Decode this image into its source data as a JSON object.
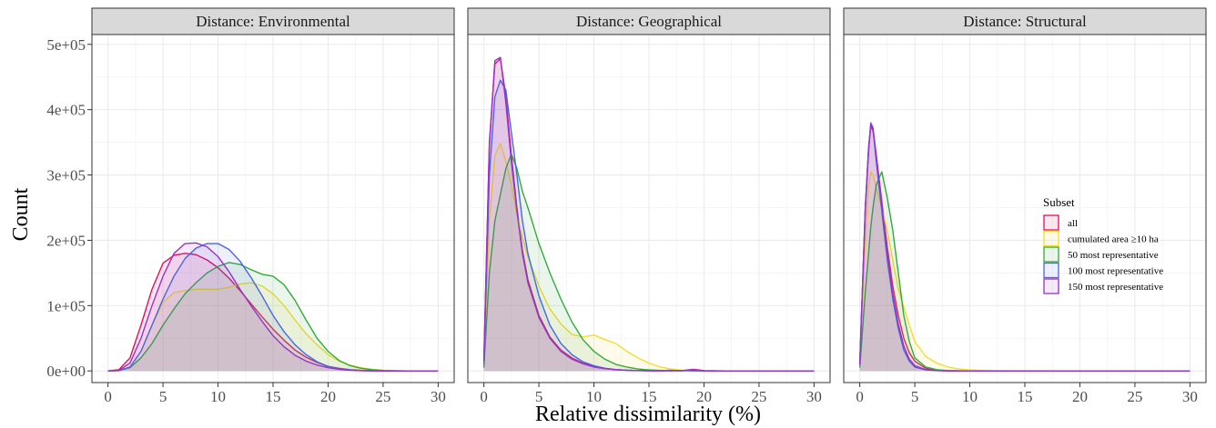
{
  "chart_data": {
    "type": "area",
    "xlabel": "Relative dissimilarity (%)",
    "ylabel": "Count",
    "xlim": [
      0,
      30
    ],
    "ylim": [
      0,
      500000
    ],
    "x_ticks": [
      0,
      5,
      10,
      15,
      20,
      25,
      30
    ],
    "y_ticks": [
      0,
      100000,
      200000,
      300000,
      400000,
      500000
    ],
    "y_tick_labels": [
      "0e+00",
      "1e+05",
      "2e+05",
      "3e+05",
      "4e+05",
      "5e+05"
    ],
    "grid": true,
    "legend": {
      "title": "Subset",
      "placement": "top-right of third panel",
      "entries": [
        "all",
        "cumulated area ≥10 ha",
        "50 most representative",
        "100 most representative",
        "150 most representative"
      ]
    },
    "series_colors": {
      "all": "#e0125e",
      "cumulated area ≥10 ha": "#f2dc32",
      "50 most representative": "#33aa3b",
      "100 most representative": "#4a66e6",
      "150 most representative": "#9932c8"
    },
    "panels": [
      {
        "strip": "Distance: Environmental",
        "x": [
          0,
          1,
          2,
          3,
          4,
          5,
          6,
          7,
          8,
          9,
          10,
          11,
          12,
          13,
          14,
          15,
          16,
          17,
          18,
          19,
          20,
          21,
          22,
          23,
          24,
          25,
          26,
          27,
          28,
          30
        ],
        "series": [
          {
            "name": "all",
            "values": [
              0,
              2000,
              20000,
              70000,
              125000,
              165000,
              177000,
              180000,
              178000,
              170000,
              158000,
              142000,
              123000,
              103000,
              83000,
              64000,
              47000,
              32000,
              21000,
              13000,
              7000,
              4000,
              2000,
              1000,
              500,
              200,
              0,
              0,
              0,
              0
            ]
          },
          {
            "name": "cumulated area ≥10 ha",
            "values": [
              0,
              500,
              6000,
              30000,
              70000,
              105000,
              120000,
              123000,
              125000,
              125000,
              125000,
              128000,
              133000,
              135000,
              130000,
              118000,
              100000,
              78000,
              57000,
              40000,
              25000,
              15000,
              9000,
              5000,
              2500,
              1000,
              500,
              200,
              0,
              0
            ]
          },
          {
            "name": "50 most representative",
            "values": [
              0,
              500,
              5000,
              20000,
              42000,
              70000,
              95000,
              118000,
              135000,
              150000,
              160000,
              166000,
              163000,
              155000,
              148000,
              145000,
              132000,
              108000,
              78000,
              50000,
              30000,
              16000,
              8000,
              4000,
              2000,
              700,
              300,
              0,
              0,
              0
            ]
          },
          {
            "name": "100 most representative",
            "values": [
              0,
              500,
              6000,
              30000,
              70000,
              110000,
              145000,
              172000,
              188000,
              195000,
              195000,
              186000,
              168000,
              143000,
              115000,
              85000,
              60000,
              40000,
              25000,
              14000,
              7000,
              3500,
              1500,
              600,
              200,
              0,
              0,
              0,
              0,
              0
            ]
          },
          {
            "name": "150 most representative",
            "values": [
              0,
              1000,
              12000,
              50000,
              100000,
              145000,
              180000,
              195000,
              196000,
              190000,
              175000,
              152000,
              125000,
              100000,
              76000,
              54000,
              37000,
              24000,
              15000,
              9000,
              5000,
              2500,
              1000,
              400,
              0,
              0,
              0,
              0,
              0,
              0
            ]
          }
        ]
      },
      {
        "strip": "Distance: Geographical",
        "x": [
          0,
          0.5,
          1,
          1.5,
          2,
          2.5,
          3,
          3.5,
          4,
          5,
          6,
          7,
          8,
          9,
          10,
          11,
          12,
          13,
          14,
          15,
          16,
          17,
          18,
          19,
          20,
          22,
          25,
          30
        ],
        "series": [
          {
            "name": "all",
            "values": [
              15000,
              350000,
              470000,
              478000,
              420000,
              330000,
              250000,
              185000,
              140000,
              85000,
              52000,
              32000,
              20000,
              12000,
              7000,
              4000,
              2000,
              1000,
              500,
              500,
              300,
              1000,
              500,
              2500,
              500,
              0,
              0,
              0
            ]
          },
          {
            "name": "cumulated area ≥10 ha",
            "values": [
              10000,
              230000,
              330000,
              348000,
              320000,
              285000,
              240000,
              205000,
              175000,
              130000,
              95000,
              72000,
              56000,
              52000,
              55000,
              48000,
              42000,
              30000,
              20000,
              12000,
              6000,
              3000,
              1000,
              500,
              0,
              0,
              0,
              0
            ]
          },
          {
            "name": "50 most representative",
            "values": [
              5000,
              150000,
              230000,
              270000,
              310000,
              332000,
              310000,
              275000,
              250000,
              195000,
              150000,
              110000,
              75000,
              48000,
              30000,
              18000,
              10000,
              6000,
              3000,
              1500,
              800,
              400,
              200,
              1000,
              0,
              0,
              0,
              0
            ]
          },
          {
            "name": "100 most representative",
            "values": [
              10000,
              300000,
              420000,
              445000,
              430000,
              365000,
              300000,
              230000,
              180000,
              115000,
              70000,
              42000,
              25000,
              14000,
              8000,
              4000,
              2000,
              1000,
              500,
              300,
              200,
              100,
              500,
              0,
              0,
              0,
              0,
              0
            ]
          },
          {
            "name": "150 most representative",
            "values": [
              15000,
              345000,
              475000,
              480000,
              410000,
              320000,
              245000,
              180000,
              135000,
              82000,
              50000,
              30000,
              18000,
              11000,
              6000,
              3500,
              2000,
              1000,
              500,
              300,
              200,
              800,
              300,
              2000,
              0,
              0,
              0,
              0
            ]
          }
        ]
      },
      {
        "strip": "Distance: Structural",
        "x": [
          0,
          0.5,
          0.8,
          1,
          1.2,
          1.5,
          2,
          2.5,
          3,
          3.5,
          4,
          4.5,
          5,
          6,
          7,
          8,
          9,
          10,
          12,
          15,
          20,
          30
        ],
        "series": [
          {
            "name": "all",
            "values": [
              10000,
              250000,
              340000,
              375000,
              368000,
              330000,
              260000,
              190000,
              130000,
              85000,
              50000,
              28000,
              15000,
              4000,
              1000,
              300,
              100,
              0,
              0,
              0,
              0,
              0
            ]
          },
          {
            "name": "cumulated area ≥10 ha",
            "values": [
              8000,
              200000,
              280000,
              305000,
              300000,
              280000,
              250000,
              215000,
              170000,
              125000,
              98000,
              70000,
              45000,
              22000,
              12000,
              6000,
              3000,
              1500,
              500,
              200,
              0,
              0
            ]
          },
          {
            "name": "50 most representative",
            "values": [
              5000,
              120000,
              180000,
              220000,
              250000,
              285000,
              305000,
              265000,
              215000,
              150000,
              85000,
              45000,
              20000,
              6000,
              2000,
              500,
              200,
              0,
              0,
              0,
              0,
              0
            ]
          },
          {
            "name": "100 most representative",
            "values": [
              10000,
              245000,
              335000,
              380000,
              372000,
              320000,
              245000,
              170000,
              110000,
              65000,
              32000,
              15000,
              6000,
              1500,
              500,
              100,
              0,
              0,
              0,
              0,
              0,
              0
            ]
          },
          {
            "name": "150 most representative",
            "values": [
              10000,
              250000,
              342000,
              378000,
              372000,
              330000,
              255000,
              180000,
              118000,
              72000,
              38000,
              18000,
              8000,
              2000,
              500,
              100,
              0,
              0,
              0,
              0,
              0,
              0
            ]
          }
        ]
      }
    ]
  }
}
